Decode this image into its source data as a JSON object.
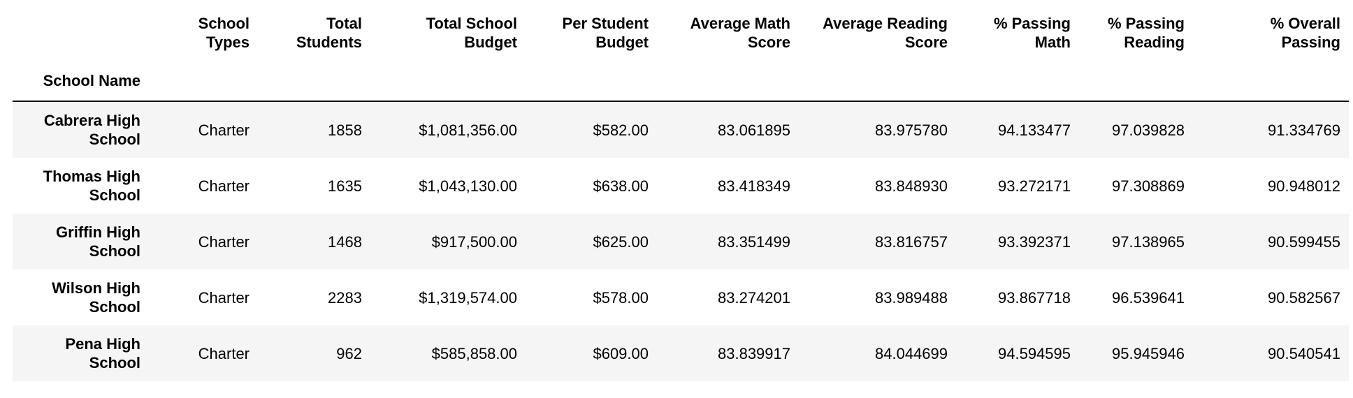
{
  "table": {
    "index_name": "School Name",
    "columns": [
      "School\nTypes",
      "Total\nStudents",
      "Total School\nBudget",
      "Per Student\nBudget",
      "Average Math\nScore",
      "Average Reading\nScore",
      "% Passing\nMath",
      "% Passing\nReading",
      "% Overall\nPassing"
    ],
    "rows": [
      {
        "school_name": "Cabrera High School",
        "cells": [
          "Charter",
          "1858",
          "$1,081,356.00",
          "$582.00",
          "83.061895",
          "83.975780",
          "94.133477",
          "97.039828",
          "91.334769"
        ]
      },
      {
        "school_name": "Thomas High School",
        "cells": [
          "Charter",
          "1635",
          "$1,043,130.00",
          "$638.00",
          "83.418349",
          "83.848930",
          "93.272171",
          "97.308869",
          "90.948012"
        ]
      },
      {
        "school_name": "Griffin High School",
        "cells": [
          "Charter",
          "1468",
          "$917,500.00",
          "$625.00",
          "83.351499",
          "83.816757",
          "93.392371",
          "97.138965",
          "90.599455"
        ]
      },
      {
        "school_name": "Wilson High School",
        "cells": [
          "Charter",
          "2283",
          "$1,319,574.00",
          "$578.00",
          "83.274201",
          "83.989488",
          "93.867718",
          "96.539641",
          "90.582567"
        ]
      },
      {
        "school_name": "Pena High School",
        "cells": [
          "Charter",
          "962",
          "$585,858.00",
          "$609.00",
          "83.839917",
          "84.044699",
          "94.594595",
          "95.945946",
          "90.540541"
        ]
      }
    ]
  },
  "colors": {
    "striped_row": "#f5f5f5",
    "header_rule": "#000000",
    "text": "#000000"
  }
}
